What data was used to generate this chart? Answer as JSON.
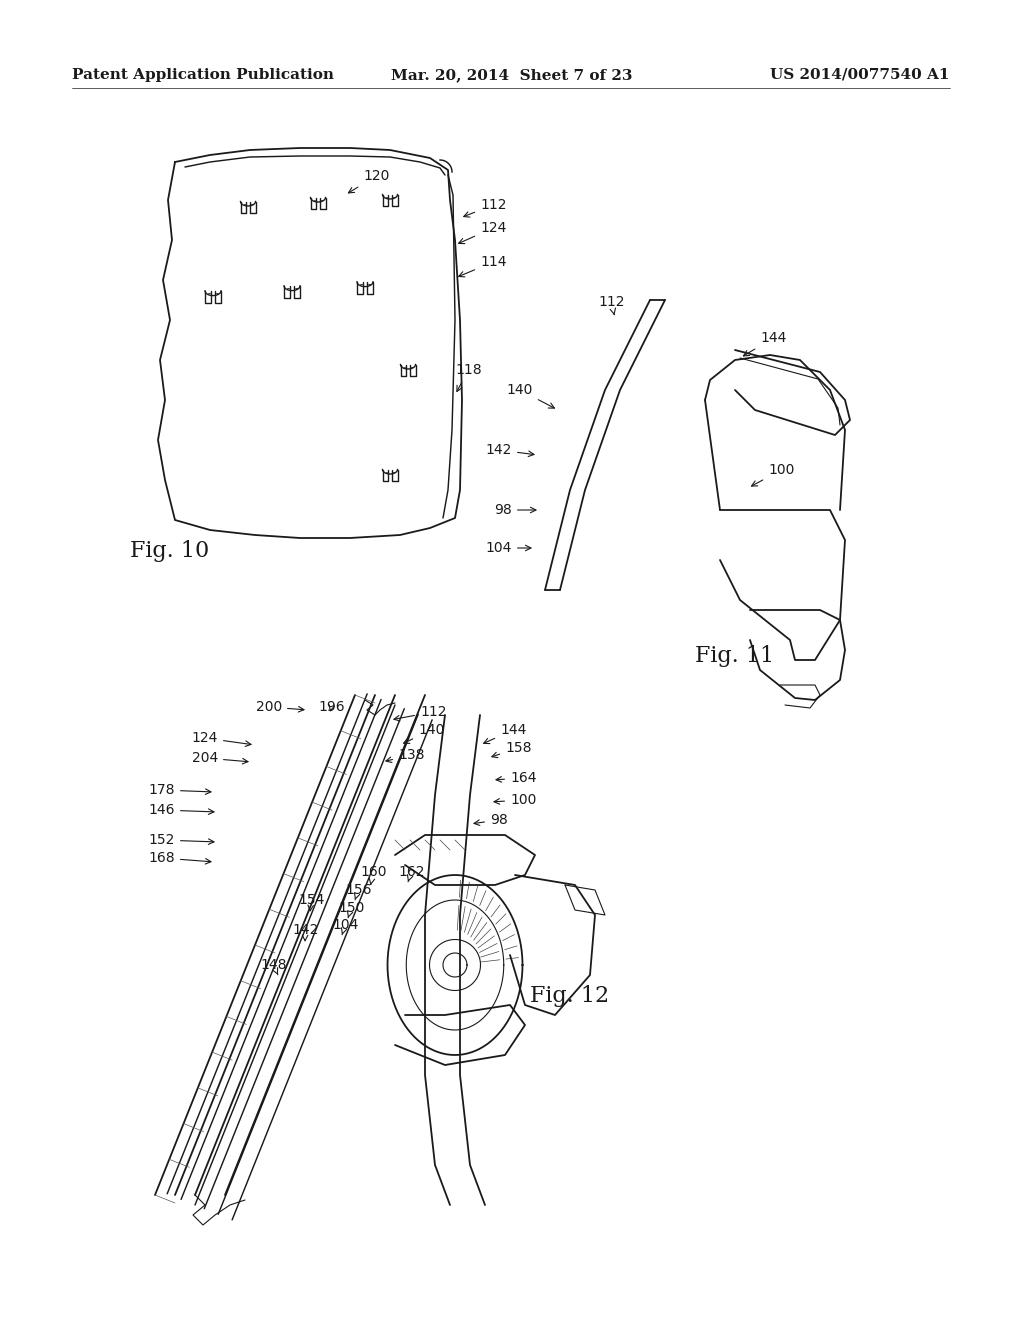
{
  "background_color": "#ffffff",
  "header_left": "Patent Application Publication",
  "header_center": "Mar. 20, 2014  Sheet 7 of 23",
  "header_right": "US 2014/0077540 A1",
  "header_fontsize": 11,
  "fig10_label": "Fig. 10",
  "fig11_label": "Fig. 11",
  "fig12_label": "Fig. 12",
  "fig_label_fontsize": 16,
  "annotation_fontsize": 10,
  "line_color": "#1a1a1a",
  "line_width": 1.3,
  "thin_line": 0.8
}
